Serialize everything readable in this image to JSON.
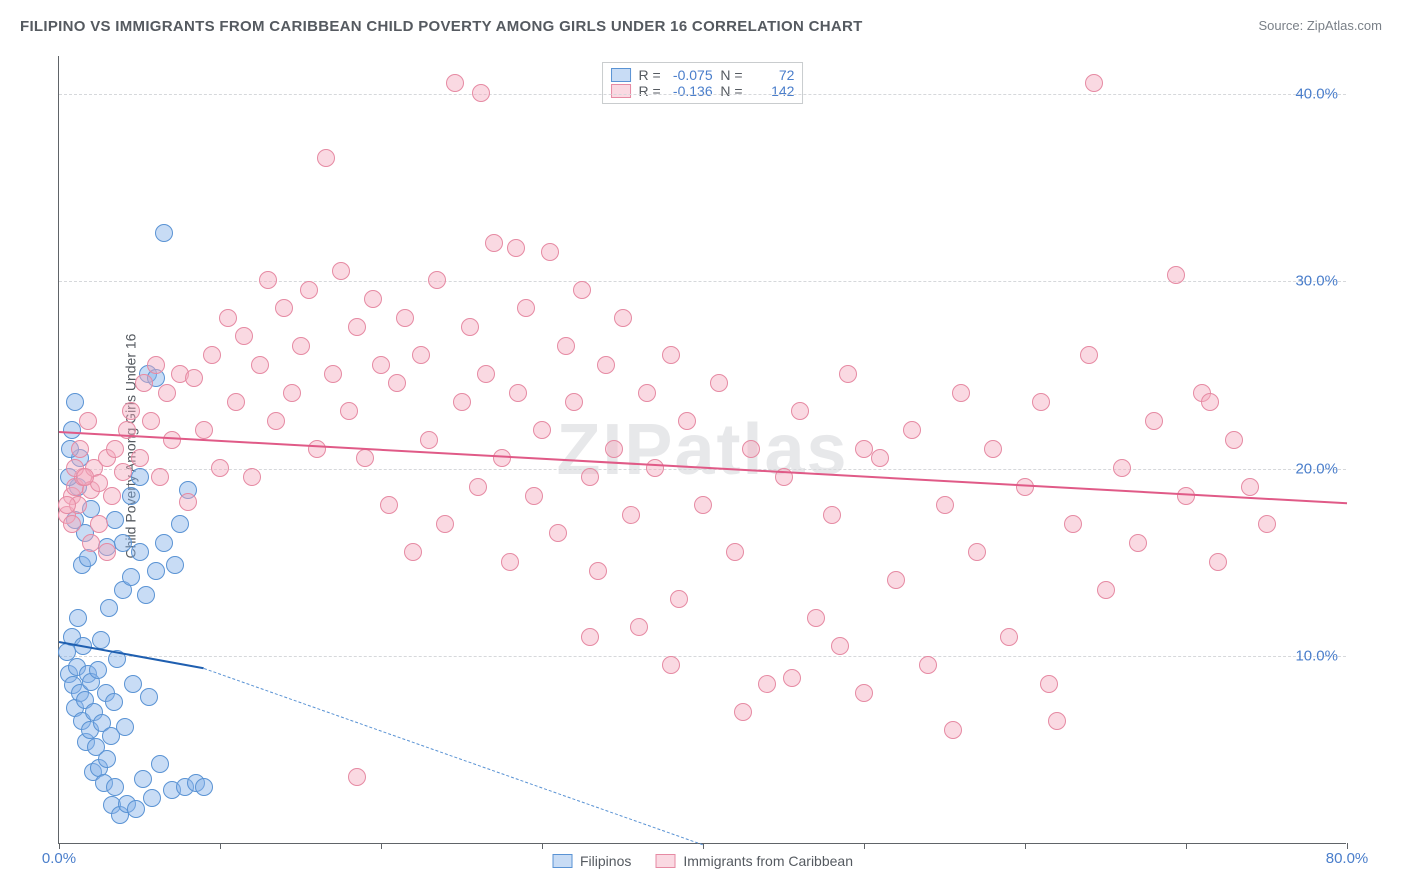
{
  "title": "FILIPINO VS IMMIGRANTS FROM CARIBBEAN CHILD POVERTY AMONG GIRLS UNDER 16 CORRELATION CHART",
  "source_prefix": "Source: ",
  "source_name": "ZipAtlas.com",
  "ylabel": "Child Poverty Among Girls Under 16",
  "watermark": "ZIPatlas",
  "chart": {
    "type": "scatter-correlation",
    "background_color": "#ffffff",
    "grid_color": "#d6d8db",
    "axis_color": "#606468",
    "tick_label_color": "#4a7ecb",
    "tick_fontsize": 15,
    "title_fontsize": 15,
    "label_fontsize": 14,
    "xlim": [
      0,
      80
    ],
    "ylim": [
      0,
      42
    ],
    "yticks": [
      10,
      20,
      30,
      40
    ],
    "ytick_labels": [
      "10.0%",
      "20.0%",
      "30.0%",
      "40.0%"
    ],
    "xticks": [
      0,
      40,
      80
    ],
    "xtick_labels": [
      "0.0%",
      "",
      "80.0%"
    ],
    "xtick_marks": [
      0,
      10,
      20,
      30,
      40,
      50,
      60,
      70,
      80
    ],
    "point_radius": 9,
    "point_stroke_width": 1.2,
    "trend_line_width": 2,
    "series": [
      {
        "name": "Filipinos",
        "fill_color": "rgba(133,178,232,0.45)",
        "stroke_color": "#5a93d4",
        "trend_solid_color": "#1f5fb0",
        "trend_dash_color": "#5a93d4",
        "R": "-0.075",
        "N": "72",
        "trend": {
          "x1": 0,
          "y1": 10.8,
          "x2_solid": 9,
          "y2_solid": 9.4,
          "x2": 40,
          "y2": 0
        },
        "points": [
          [
            0.5,
            10.2
          ],
          [
            0.6,
            9.0
          ],
          [
            0.8,
            11.0
          ],
          [
            0.9,
            8.4
          ],
          [
            1.0,
            7.2
          ],
          [
            1.1,
            9.4
          ],
          [
            1.2,
            12.0
          ],
          [
            1.3,
            8.0
          ],
          [
            1.4,
            6.5
          ],
          [
            1.5,
            10.5
          ],
          [
            1.6,
            7.6
          ],
          [
            1.7,
            5.4
          ],
          [
            1.8,
            9.0
          ],
          [
            1.9,
            6.0
          ],
          [
            2.0,
            8.6
          ],
          [
            2.1,
            3.8
          ],
          [
            2.2,
            7.0
          ],
          [
            2.3,
            5.1
          ],
          [
            2.4,
            9.2
          ],
          [
            2.5,
            4.0
          ],
          [
            2.6,
            10.8
          ],
          [
            2.7,
            6.4
          ],
          [
            2.8,
            3.2
          ],
          [
            2.9,
            8.0
          ],
          [
            3.0,
            4.5
          ],
          [
            3.1,
            12.5
          ],
          [
            3.2,
            5.7
          ],
          [
            3.3,
            2.0
          ],
          [
            3.4,
            7.5
          ],
          [
            3.5,
            3.0
          ],
          [
            3.6,
            9.8
          ],
          [
            3.8,
            1.5
          ],
          [
            4.0,
            13.5
          ],
          [
            4.1,
            6.2
          ],
          [
            4.2,
            2.1
          ],
          [
            4.5,
            14.2
          ],
          [
            4.6,
            8.5
          ],
          [
            4.8,
            1.8
          ],
          [
            5.0,
            15.5
          ],
          [
            5.2,
            3.4
          ],
          [
            5.4,
            13.2
          ],
          [
            5.6,
            7.8
          ],
          [
            5.8,
            2.4
          ],
          [
            6.0,
            14.5
          ],
          [
            6.3,
            4.2
          ],
          [
            6.5,
            16.0
          ],
          [
            7.0,
            2.8
          ],
          [
            7.2,
            14.8
          ],
          [
            7.5,
            17.0
          ],
          [
            7.8,
            3.0
          ],
          [
            8.0,
            18.8
          ],
          [
            1.0,
            17.2
          ],
          [
            1.2,
            19.0
          ],
          [
            1.4,
            14.8
          ],
          [
            1.6,
            16.5
          ],
          [
            1.8,
            15.2
          ],
          [
            2.0,
            17.8
          ],
          [
            0.8,
            22.0
          ],
          [
            1.0,
            23.5
          ],
          [
            1.3,
            20.5
          ],
          [
            6.5,
            32.5
          ],
          [
            0.6,
            19.5
          ],
          [
            0.7,
            21.0
          ],
          [
            3.0,
            15.8
          ],
          [
            3.5,
            17.2
          ],
          [
            4.0,
            16.0
          ],
          [
            4.5,
            18.5
          ],
          [
            5.5,
            25.0
          ],
          [
            6.0,
            24.8
          ],
          [
            8.5,
            3.2
          ],
          [
            9.0,
            3.0
          ],
          [
            5.0,
            19.5
          ]
        ]
      },
      {
        "name": "Immigrants from Caribbean",
        "fill_color": "rgba(244,171,191,0.45)",
        "stroke_color": "#e68aa3",
        "trend_solid_color": "#e05a87",
        "trend_dash_color": "#e68aa3",
        "R": "-0.136",
        "N": "142",
        "trend": {
          "x1": 0,
          "y1": 22.0,
          "x2_solid": 80,
          "y2_solid": 18.2,
          "x2": 80,
          "y2": 18.2
        },
        "points": [
          [
            0.5,
            17.5
          ],
          [
            0.8,
            18.5
          ],
          [
            1.0,
            19.0
          ],
          [
            1.2,
            18.0
          ],
          [
            1.5,
            19.5
          ],
          [
            2.0,
            18.8
          ],
          [
            2.2,
            20.0
          ],
          [
            2.5,
            19.2
          ],
          [
            3.0,
            20.5
          ],
          [
            3.3,
            18.5
          ],
          [
            3.5,
            21.0
          ],
          [
            4.0,
            19.8
          ],
          [
            4.2,
            22.0
          ],
          [
            4.5,
            23.0
          ],
          [
            5.0,
            20.5
          ],
          [
            5.3,
            24.5
          ],
          [
            5.7,
            22.5
          ],
          [
            6.0,
            25.5
          ],
          [
            6.3,
            19.5
          ],
          [
            6.7,
            24.0
          ],
          [
            7.0,
            21.5
          ],
          [
            7.5,
            25.0
          ],
          [
            8.0,
            18.2
          ],
          [
            8.4,
            24.8
          ],
          [
            9.0,
            22.0
          ],
          [
            9.5,
            26.0
          ],
          [
            10.0,
            20.0
          ],
          [
            10.5,
            28.0
          ],
          [
            11.0,
            23.5
          ],
          [
            11.5,
            27.0
          ],
          [
            12.0,
            19.5
          ],
          [
            12.5,
            25.5
          ],
          [
            13.0,
            30.0
          ],
          [
            13.5,
            22.5
          ],
          [
            14.0,
            28.5
          ],
          [
            14.5,
            24.0
          ],
          [
            15.0,
            26.5
          ],
          [
            15.5,
            29.5
          ],
          [
            16.0,
            21.0
          ],
          [
            16.6,
            36.5
          ],
          [
            17.0,
            25.0
          ],
          [
            17.5,
            30.5
          ],
          [
            18.0,
            23.0
          ],
          [
            18.5,
            27.5
          ],
          [
            19.0,
            20.5
          ],
          [
            19.5,
            29.0
          ],
          [
            20.0,
            25.5
          ],
          [
            20.5,
            18.0
          ],
          [
            21.0,
            24.5
          ],
          [
            21.5,
            28.0
          ],
          [
            22.0,
            15.5
          ],
          [
            22.5,
            26.0
          ],
          [
            23.0,
            21.5
          ],
          [
            23.5,
            30.0
          ],
          [
            24.0,
            17.0
          ],
          [
            24.6,
            40.5
          ],
          [
            25.0,
            23.5
          ],
          [
            25.5,
            27.5
          ],
          [
            26.0,
            19.0
          ],
          [
            26.2,
            40.0
          ],
          [
            26.5,
            25.0
          ],
          [
            27.0,
            32.0
          ],
          [
            27.5,
            20.5
          ],
          [
            28.0,
            15.0
          ],
          [
            28.4,
            31.7
          ],
          [
            28.5,
            24.0
          ],
          [
            29.0,
            28.5
          ],
          [
            29.5,
            18.5
          ],
          [
            30.0,
            22.0
          ],
          [
            30.5,
            31.5
          ],
          [
            31.0,
            16.5
          ],
          [
            31.5,
            26.5
          ],
          [
            32.0,
            23.5
          ],
          [
            32.5,
            29.5
          ],
          [
            33.0,
            19.5
          ],
          [
            33.5,
            14.5
          ],
          [
            34.0,
            25.5
          ],
          [
            34.5,
            21.0
          ],
          [
            35.0,
            28.0
          ],
          [
            35.5,
            17.5
          ],
          [
            36.0,
            11.5
          ],
          [
            36.5,
            24.0
          ],
          [
            37.0,
            20.0
          ],
          [
            38.0,
            26.0
          ],
          [
            38.5,
            13.0
          ],
          [
            39.0,
            22.5
          ],
          [
            40.0,
            18.0
          ],
          [
            41.0,
            24.5
          ],
          [
            42.0,
            15.5
          ],
          [
            43.0,
            21.0
          ],
          [
            44.0,
            8.5
          ],
          [
            45.0,
            19.5
          ],
          [
            45.5,
            8.8
          ],
          [
            46.0,
            23.0
          ],
          [
            47.0,
            12.0
          ],
          [
            48.0,
            17.5
          ],
          [
            49.0,
            25.0
          ],
          [
            50.0,
            8.0
          ],
          [
            51.0,
            20.5
          ],
          [
            52.0,
            14.0
          ],
          [
            53.0,
            22.0
          ],
          [
            54.0,
            9.5
          ],
          [
            55.0,
            18.0
          ],
          [
            56.0,
            24.0
          ],
          [
            57.0,
            15.5
          ],
          [
            58.0,
            21.0
          ],
          [
            59.0,
            11.0
          ],
          [
            60.0,
            19.0
          ],
          [
            61.0,
            23.5
          ],
          [
            62.0,
            6.5
          ],
          [
            63.0,
            17.0
          ],
          [
            64.0,
            26.0
          ],
          [
            65.0,
            13.5
          ],
          [
            66.0,
            20.0
          ],
          [
            67.0,
            16.0
          ],
          [
            68.0,
            22.5
          ],
          [
            69.4,
            30.3
          ],
          [
            70.0,
            18.5
          ],
          [
            71.0,
            24.0
          ],
          [
            71.5,
            23.5
          ],
          [
            72.0,
            15.0
          ],
          [
            73.0,
            21.5
          ],
          [
            74.0,
            19.0
          ],
          [
            75.0,
            17.0
          ],
          [
            64.3,
            40.5
          ],
          [
            18.5,
            3.5
          ],
          [
            33.0,
            11.0
          ],
          [
            38.0,
            9.5
          ],
          [
            42.5,
            7.0
          ],
          [
            48.5,
            10.5
          ],
          [
            55.5,
            6.0
          ],
          [
            61.5,
            8.5
          ],
          [
            2.0,
            16.0
          ],
          [
            2.5,
            17.0
          ],
          [
            3.0,
            15.5
          ],
          [
            1.0,
            20.0
          ],
          [
            1.3,
            21.0
          ],
          [
            1.6,
            19.5
          ],
          [
            1.8,
            22.5
          ],
          [
            0.5,
            18.0
          ],
          [
            0.8,
            17.0
          ],
          [
            50.0,
            21.0
          ]
        ]
      }
    ]
  },
  "legend_bottom": {
    "items": [
      "Filipinos",
      "Immigrants from Caribbean"
    ]
  }
}
